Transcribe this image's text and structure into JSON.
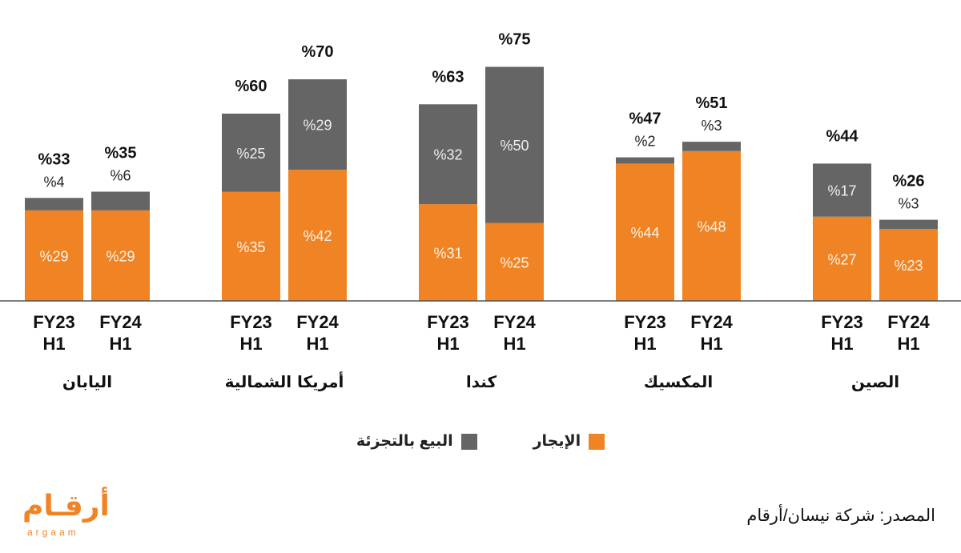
{
  "chart_data": {
    "type": "bar",
    "stacked": true,
    "ylim": [
      0,
      80
    ],
    "period_labels": [
      "FY23 H1",
      "FY24 H1"
    ],
    "series": [
      {
        "name": "الإيجار",
        "color": "#f08424"
      },
      {
        "name": "البيع بالتجزئة",
        "color": "#656565"
      }
    ],
    "groups": [
      {
        "category": "اليابان",
        "bars": [
          {
            "period": "FY23 H1",
            "lease": 29,
            "retail": 4,
            "total": 33,
            "lease_label": "%29",
            "retail_label": "%4",
            "total_label": "%33"
          },
          {
            "period": "FY24 H1",
            "lease": 29,
            "retail": 6,
            "total": 35,
            "lease_label": "%29",
            "retail_label": "%6",
            "total_label": "%35"
          }
        ]
      },
      {
        "category": "أمريكا الشمالية",
        "bars": [
          {
            "period": "FY23 H1",
            "lease": 35,
            "retail": 25,
            "total": 60,
            "lease_label": "%35",
            "retail_label": "%25",
            "total_label": "%60"
          },
          {
            "period": "FY24 H1",
            "lease": 42,
            "retail": 29,
            "total": 70,
            "lease_label": "%42",
            "retail_label": "%29",
            "total_label": "%70"
          }
        ]
      },
      {
        "category": "كندا",
        "bars": [
          {
            "period": "FY23 H1",
            "lease": 31,
            "retail": 32,
            "total": 63,
            "lease_label": "%31",
            "retail_label": "%32",
            "total_label": "%63"
          },
          {
            "period": "FY24 H1",
            "lease": 25,
            "retail": 50,
            "total": 75,
            "lease_label": "%25",
            "retail_label": "%50",
            "total_label": "%75"
          }
        ]
      },
      {
        "category": "المكسيك",
        "bars": [
          {
            "period": "FY23 H1",
            "lease": 44,
            "retail": 2,
            "total": 47,
            "lease_label": "%44",
            "retail_label": "%2",
            "total_label": "%47"
          },
          {
            "period": "FY24 H1",
            "lease": 48,
            "retail": 3,
            "total": 51,
            "lease_label": "%48",
            "retail_label": "%3",
            "total_label": "%51"
          }
        ]
      },
      {
        "category": "الصين",
        "bars": [
          {
            "period": "FY23 H1",
            "lease": 27,
            "retail": 17,
            "total": 44,
            "lease_label": "%27",
            "retail_label": "%17",
            "total_label": "%44"
          },
          {
            "period": "FY24 H1",
            "lease": 23,
            "retail": 3,
            "total": 26,
            "lease_label": "%23",
            "retail_label": "%3",
            "total_label": "%26"
          }
        ]
      }
    ]
  },
  "legend": {
    "lease_label": "الإيجار",
    "retail_label": "البيع بالتجزئة",
    "lease_color": "#f08424",
    "retail_color": "#656565"
  },
  "source_text": "المصدر: شركة نيسان/أرقام",
  "logo": {
    "arabic": "أرقام",
    "latin": "argaam"
  }
}
